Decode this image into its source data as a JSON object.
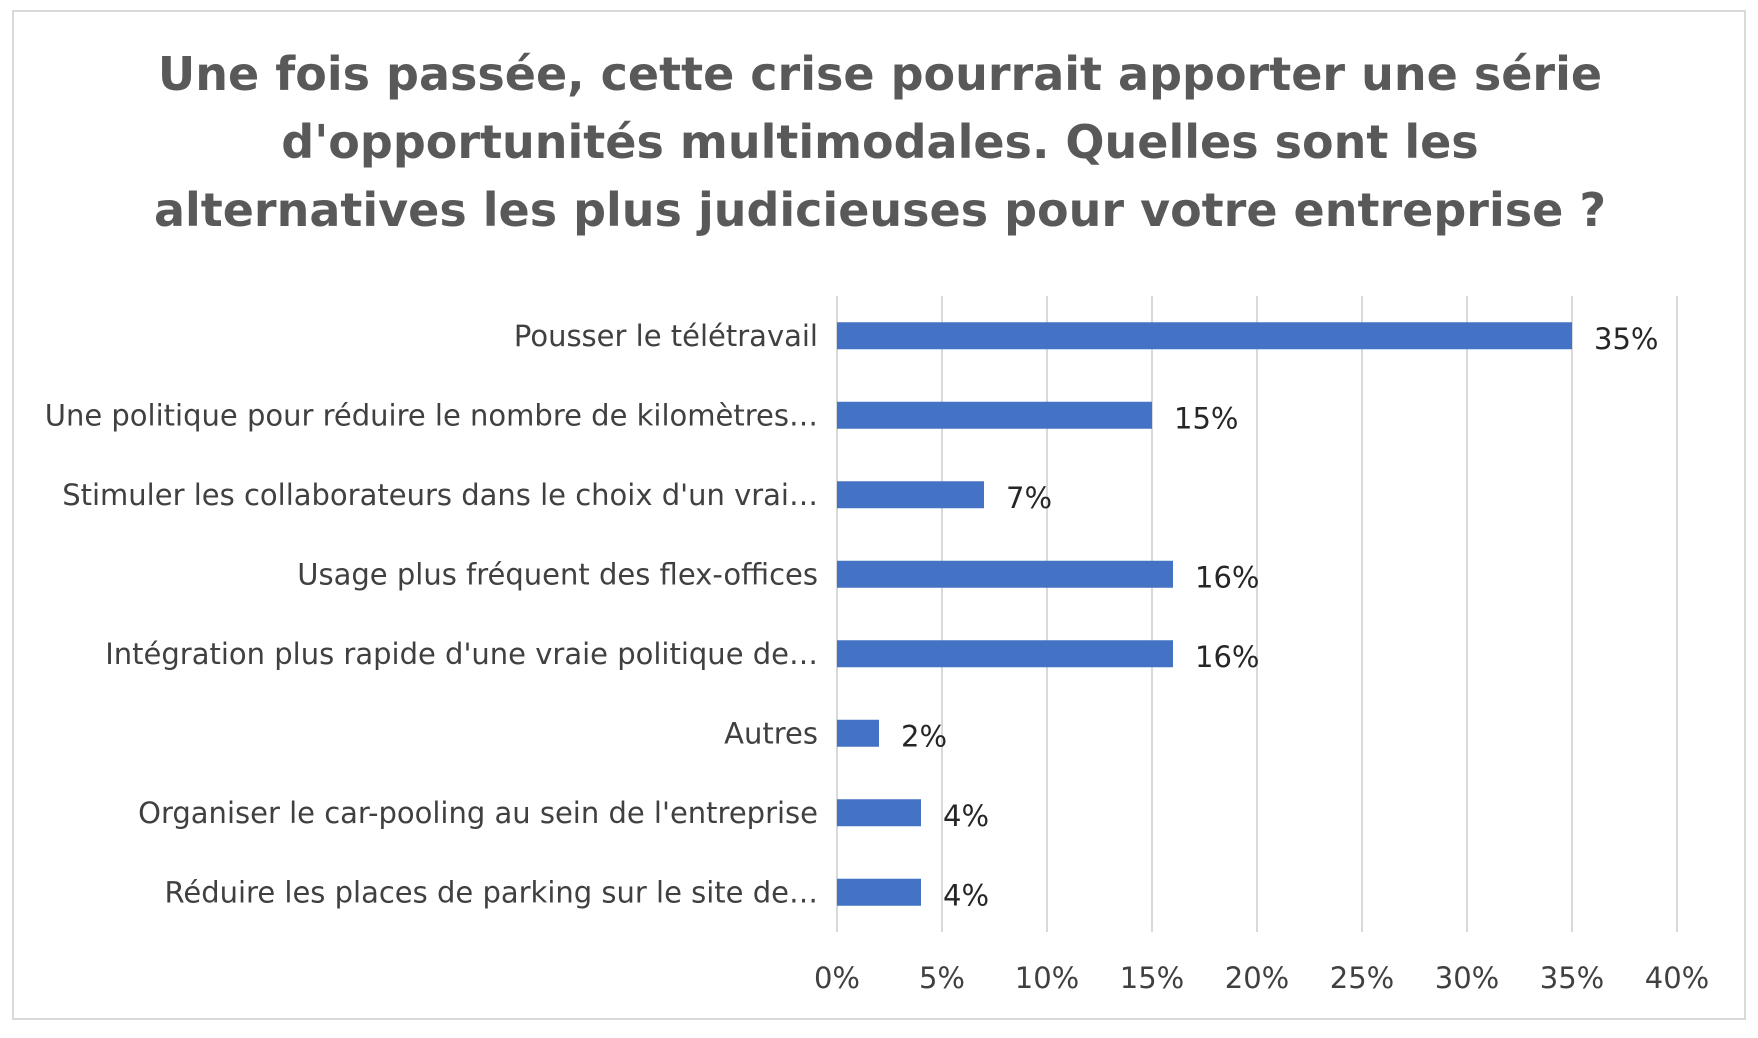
{
  "chart_data": {
    "type": "bar",
    "orientation": "horizontal",
    "title": "Une fois passée, cette crise pourrait apporter une série d'opportunités multimodales. Quelles sont les alternatives les plus judicieuses pour votre entreprise ?",
    "title_lines": [
      "Une fois passée, cette crise pourrait apporter une série",
      "d'opportunités multimodales. Quelles sont les",
      "alternatives les plus judicieuses pour votre entreprise ?"
    ],
    "categories": [
      "Pousser le télétravail",
      "Une politique pour réduire le nombre de kilomètres…",
      "Stimuler les collaborateurs dans le choix d'un vrai…",
      "Usage plus fréquent des flex-offices",
      "Intégration plus rapide d'une vraie politique de…",
      "Autres",
      "Organiser le car-pooling au sein de l'entreprise",
      "Réduire les places de parking sur le site de…"
    ],
    "values": [
      35,
      15,
      7,
      16,
      16,
      2,
      4,
      4
    ],
    "data_labels": [
      "35%",
      "15%",
      "7%",
      "16%",
      "16%",
      "2%",
      "4%",
      "4%"
    ],
    "xlim": [
      0,
      40
    ],
    "xticks": [
      0,
      5,
      10,
      15,
      20,
      25,
      30,
      35,
      40
    ],
    "xtick_labels": [
      "0%",
      "5%",
      "10%",
      "15%",
      "20%",
      "25%",
      "30%",
      "35%",
      "40%"
    ],
    "xlabel": "",
    "ylabel": "",
    "grid": "vertical",
    "legend": "none",
    "bar_color": "#4472C4",
    "grid_color": "#d9d9d9"
  }
}
